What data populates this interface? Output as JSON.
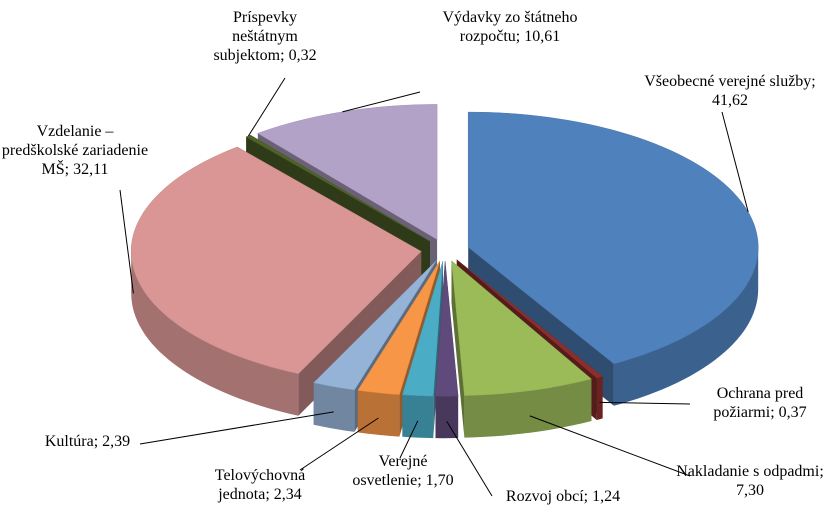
{
  "chart_data": {
    "type": "pie3d",
    "categories": [
      "Všeobecné verejné služby",
      "Ochrana pred požiarmi",
      "Nakladanie s odpadmi",
      "Rozvoj obcí",
      "Verejné osvetlenie",
      "Telovýchovná jednota",
      "Kultúra",
      "Vzdelanie – predškolské zariadenie MŠ",
      "Príspevky neštátnym subjektom",
      "Výdavky zo štátneho rozpočtu"
    ],
    "values": [
      41.62,
      0.37,
      7.3,
      1.24,
      1.7,
      2.34,
      2.39,
      32.11,
      0.32,
      10.61
    ],
    "value_labels": [
      "41,62",
      "0,37",
      "7,30",
      "1,24",
      "1,70",
      "2,34",
      "2,39",
      "32,11",
      "0,32",
      "10,61"
    ],
    "label_separator": "; ",
    "colors": [
      "#4f81bd",
      "#8c2f2c",
      "#9bbb59",
      "#604a7b",
      "#4bacc6",
      "#f79646",
      "#95b3d7",
      "#d99694",
      "#4f6228",
      "#b3a2c7"
    ]
  }
}
